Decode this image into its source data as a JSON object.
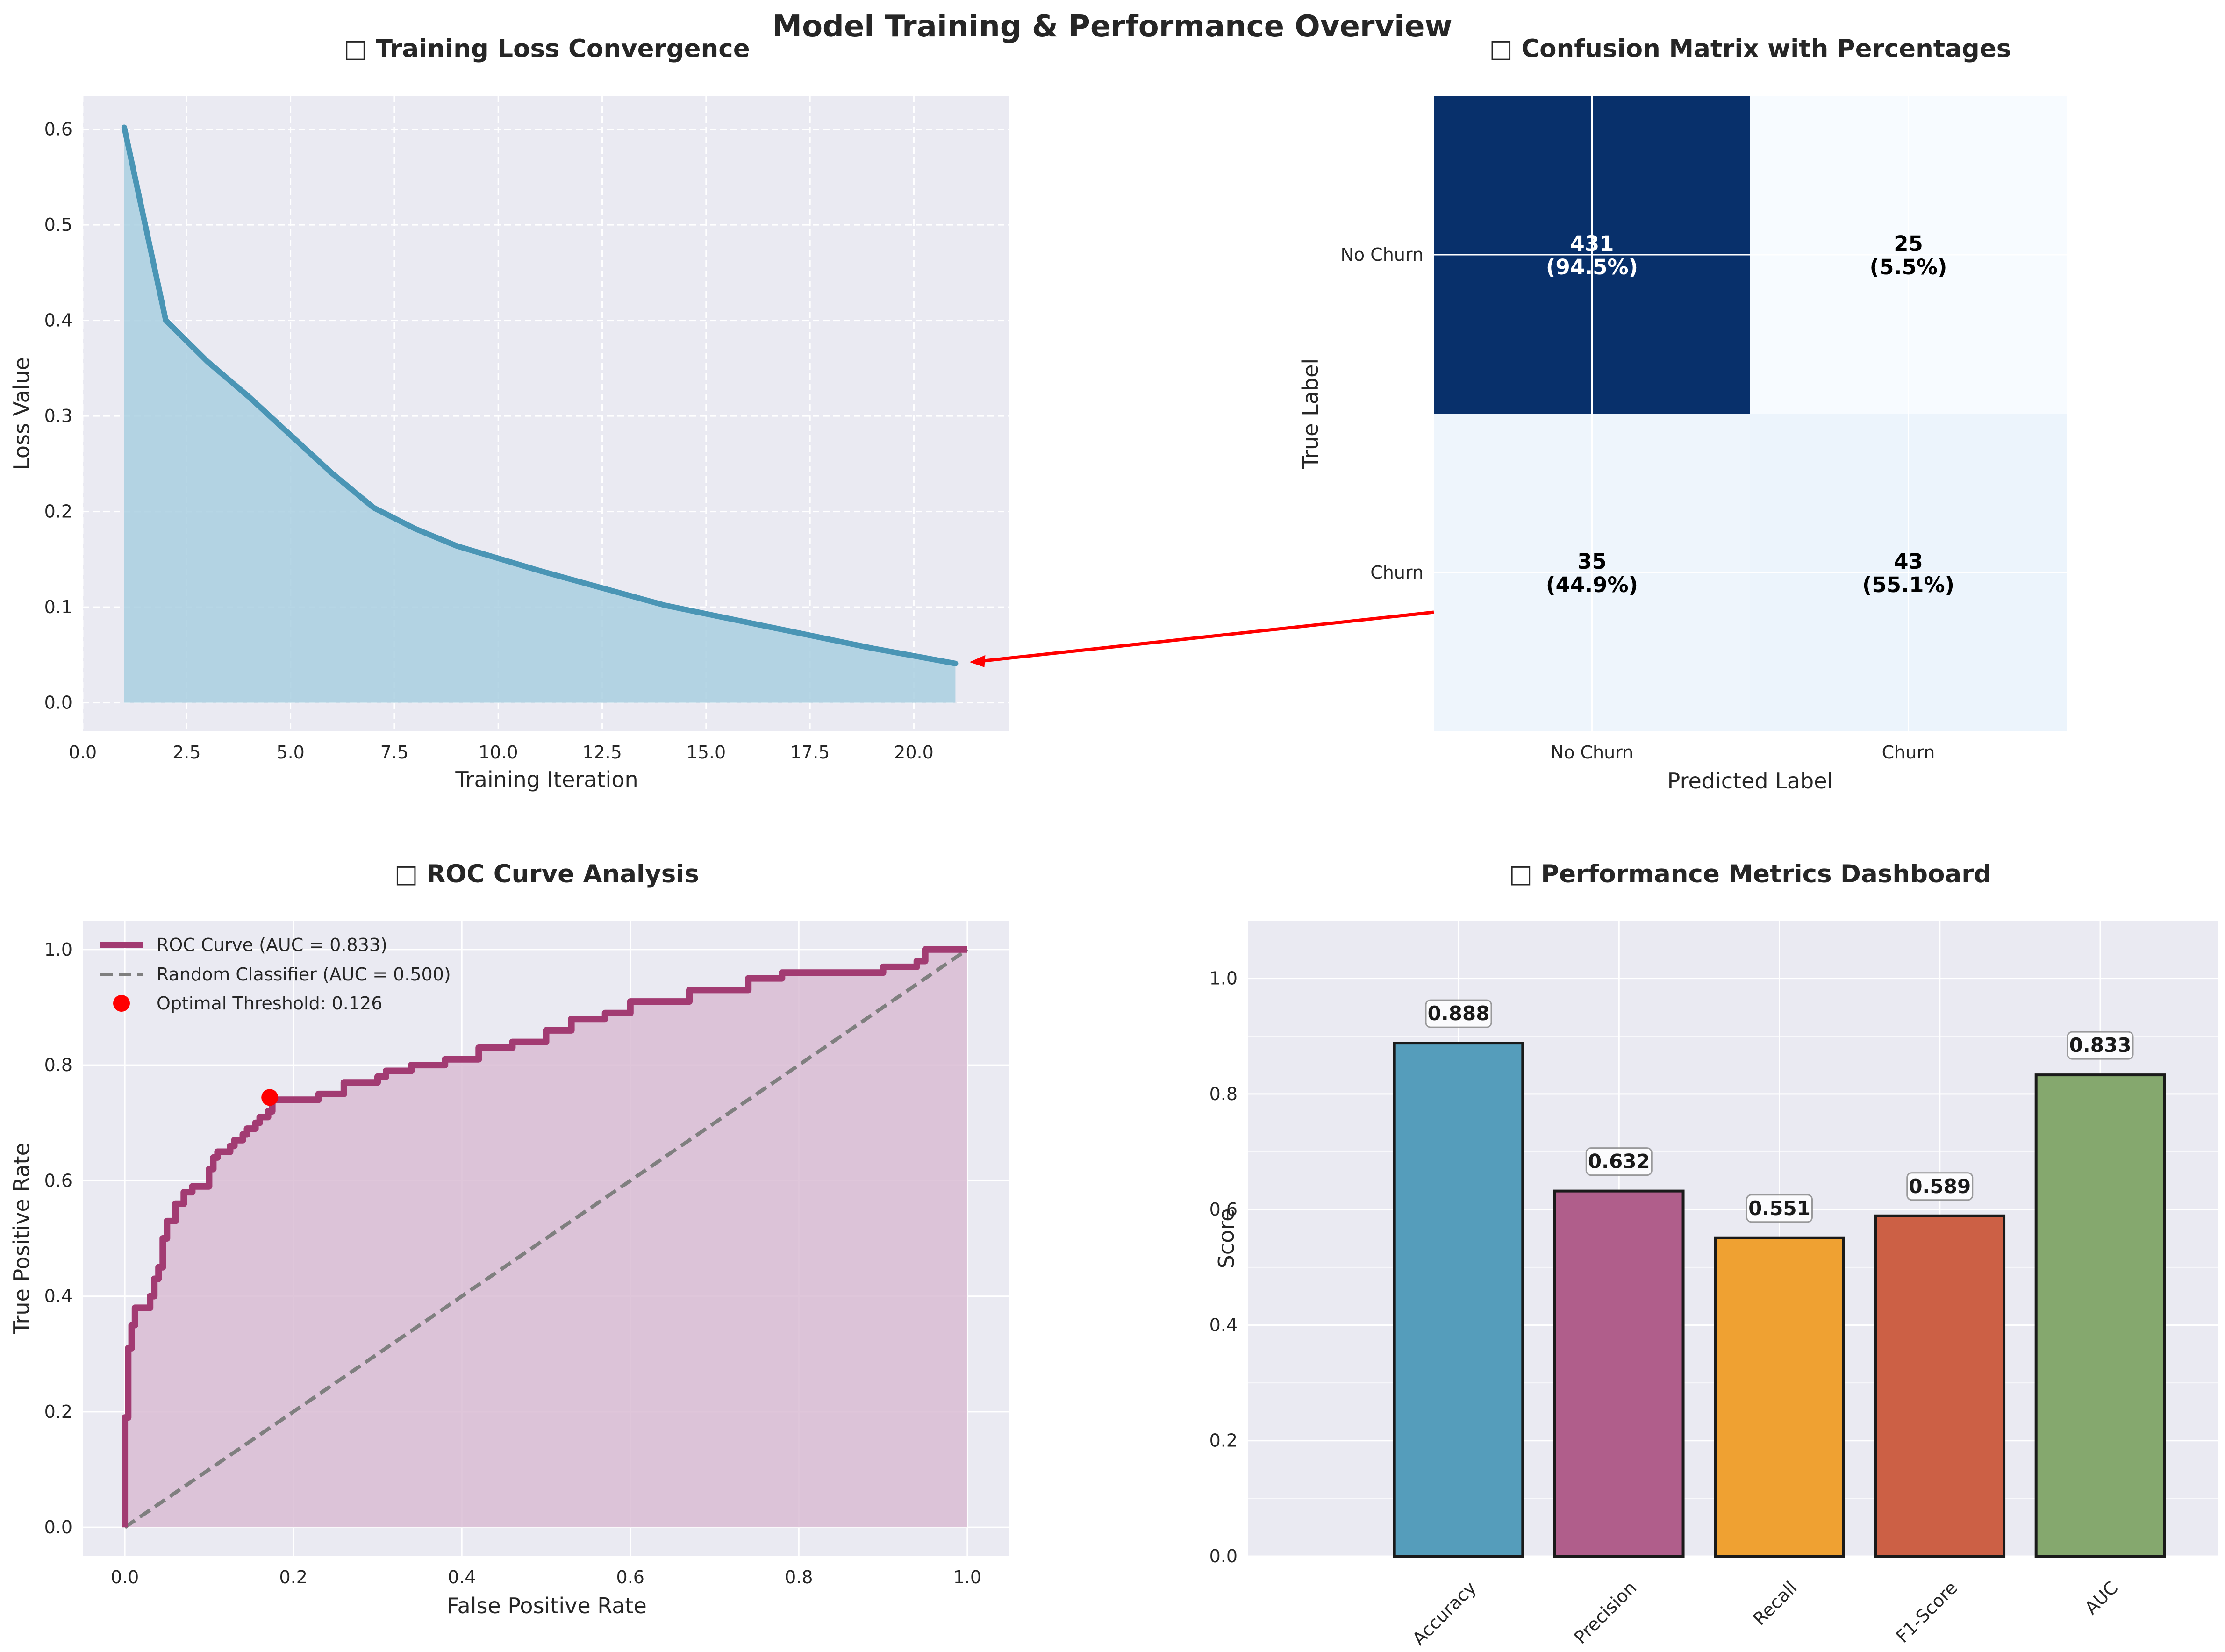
{
  "figure": {
    "title": "Model Training & Performance Overview",
    "icon": "emoji-glyph-missing"
  },
  "chart_data": [
    {
      "type": "area",
      "title": "Training Loss Convergence",
      "xlabel": "Training Iteration",
      "ylabel": "Loss Value",
      "xlim": [
        0,
        22.3
      ],
      "ylim": [
        -0.03,
        0.635
      ],
      "xticks": [
        "0.0",
        "2.5",
        "5.0",
        "7.5",
        "10.0",
        "12.5",
        "15.0",
        "17.5",
        "20.0"
      ],
      "xtick_values": [
        0,
        2.5,
        5,
        7.5,
        10,
        12.5,
        15,
        17.5,
        20
      ],
      "yticks": [
        "0.0",
        "0.1",
        "0.2",
        "0.3",
        "0.4",
        "0.5",
        "0.6"
      ],
      "ytick_values": [
        0,
        0.1,
        0.2,
        0.3,
        0.4,
        0.5,
        0.6
      ],
      "x": [
        1,
        2,
        3,
        4,
        5,
        6,
        7,
        8,
        9,
        10,
        11,
        12,
        13,
        14,
        15,
        16,
        17,
        18,
        19,
        20,
        21
      ],
      "values": [
        0.602,
        0.4,
        0.357,
        0.32,
        0.28,
        0.24,
        0.204,
        0.182,
        0.164,
        0.151,
        0.138,
        0.126,
        0.114,
        0.102,
        0.093,
        0.084,
        0.075,
        0.066,
        0.057,
        0.049,
        0.041
      ],
      "line_color": "#4a95b5",
      "fill_color": "#a9cfe0",
      "grid": true,
      "background": "#eaeaf2"
    },
    {
      "type": "heatmap",
      "title": "Confusion Matrix with Percentages",
      "xlabel": "Predicted Label",
      "ylabel": "True Label",
      "row_labels": [
        "No Churn",
        "Churn"
      ],
      "col_labels": [
        "No Churn",
        "Churn"
      ],
      "values": [
        [
          431,
          25
        ],
        [
          35,
          43
        ]
      ],
      "percent_labels": [
        [
          "(94.5%)",
          "(5.5%)"
        ],
        [
          "(44.9%)",
          "(55.1%)"
        ]
      ],
      "cell_colors": [
        [
          "#08306b",
          "#f7fbff"
        ],
        [
          "#eef5fc",
          "#ecf4fc"
        ]
      ],
      "text_colors": [
        [
          "#ffffff",
          "#000000"
        ],
        [
          "#000000",
          "#000000"
        ]
      ],
      "annotation": "red arrow from confusion matrix to final training loss point",
      "arrow_color": "#ff0000"
    },
    {
      "type": "line",
      "title": "ROC Curve Analysis",
      "xlabel": "False Positive Rate",
      "ylabel": "True Positive Rate",
      "xlim": [
        -0.05,
        1.05
      ],
      "ylim": [
        -0.05,
        1.05
      ],
      "xticks": [
        "0.0",
        "0.2",
        "0.4",
        "0.6",
        "0.8",
        "1.0"
      ],
      "xtick_values": [
        0,
        0.2,
        0.4,
        0.6,
        0.8,
        1.0
      ],
      "yticks": [
        "0.0",
        "0.2",
        "0.4",
        "0.6",
        "0.8",
        "1.0"
      ],
      "ytick_values": [
        0,
        0.2,
        0.4,
        0.6,
        0.8,
        1.0
      ],
      "legend_position": "top-left",
      "series": [
        {
          "name": "ROC Curve (AUC = 0.833)",
          "color": "#a23b72",
          "style": "solid",
          "points": [
            [
              0,
              0
            ],
            [
              0,
              0.19
            ],
            [
              0.004,
              0.22
            ],
            [
              0.004,
              0.31
            ],
            [
              0.008,
              0.35
            ],
            [
              0.012,
              0.38
            ],
            [
              0.025,
              0.38
            ],
            [
              0.03,
              0.4
            ],
            [
              0.035,
              0.43
            ],
            [
              0.04,
              0.45
            ],
            [
              0.045,
              0.47
            ],
            [
              0.045,
              0.5
            ],
            [
              0.05,
              0.53
            ],
            [
              0.06,
              0.53
            ],
            [
              0.06,
              0.56
            ],
            [
              0.07,
              0.56
            ],
            [
              0.07,
              0.58
            ],
            [
              0.08,
              0.59
            ],
            [
              0.09,
              0.59
            ],
            [
              0.1,
              0.59
            ],
            [
              0.1,
              0.62
            ],
            [
              0.105,
              0.64
            ],
            [
              0.11,
              0.65
            ],
            [
              0.12,
              0.65
            ],
            [
              0.125,
              0.66
            ],
            [
              0.13,
              0.67
            ],
            [
              0.14,
              0.68
            ],
            [
              0.145,
              0.69
            ],
            [
              0.15,
              0.69
            ],
            [
              0.155,
              0.7
            ],
            [
              0.16,
              0.7
            ],
            [
              0.16,
              0.71
            ],
            [
              0.17,
              0.71
            ],
            [
              0.17,
              0.72
            ],
            [
              0.175,
              0.73
            ],
            [
              0.175,
              0.74
            ],
            [
              0.2,
              0.74
            ],
            [
              0.23,
              0.74
            ],
            [
              0.23,
              0.75
            ],
            [
              0.25,
              0.75
            ],
            [
              0.26,
              0.77
            ],
            [
              0.3,
              0.77
            ],
            [
              0.3,
              0.78
            ],
            [
              0.31,
              0.78
            ],
            [
              0.31,
              0.79
            ],
            [
              0.34,
              0.79
            ],
            [
              0.34,
              0.8
            ],
            [
              0.37,
              0.8
            ],
            [
              0.38,
              0.81
            ],
            [
              0.4,
              0.81
            ],
            [
              0.42,
              0.83
            ],
            [
              0.45,
              0.83
            ],
            [
              0.46,
              0.84
            ],
            [
              0.5,
              0.84
            ],
            [
              0.5,
              0.86
            ],
            [
              0.52,
              0.86
            ],
            [
              0.53,
              0.88
            ],
            [
              0.56,
              0.88
            ],
            [
              0.57,
              0.89
            ],
            [
              0.6,
              0.89
            ],
            [
              0.6,
              0.91
            ],
            [
              0.66,
              0.91
            ],
            [
              0.67,
              0.93
            ],
            [
              0.73,
              0.93
            ],
            [
              0.74,
              0.95
            ],
            [
              0.77,
              0.95
            ],
            [
              0.78,
              0.96
            ],
            [
              0.82,
              0.96
            ],
            [
              0.86,
              0.96
            ],
            [
              0.9,
              0.96
            ],
            [
              0.9,
              0.97
            ],
            [
              0.93,
              0.97
            ],
            [
              0.94,
              0.98
            ],
            [
              0.95,
              1.0
            ],
            [
              1.0,
              1.0
            ]
          ]
        },
        {
          "name": "Random Classifier (AUC = 0.500)",
          "color": "#7f7f7f",
          "style": "dashed",
          "points": [
            [
              0,
              0
            ],
            [
              1,
              1
            ]
          ]
        }
      ],
      "marker": {
        "name": "Optimal Threshold: 0.126",
        "x": 0.172,
        "y": 0.744,
        "color": "#ff0000"
      },
      "fill_color": "#d9bcd4"
    },
    {
      "type": "bar",
      "title": "Performance Metrics Dashboard",
      "xlabel": "",
      "ylabel": "Score",
      "ylim": [
        0,
        1.1
      ],
      "yticks": [
        "0.0",
        "0.2",
        "0.4",
        "0.6",
        "0.8",
        "1.0"
      ],
      "ytick_values": [
        0,
        0.2,
        0.4,
        0.6,
        0.8,
        1.0
      ],
      "categories": [
        "Accuracy",
        "Precision",
        "Recall",
        "F1-Score",
        "AUC"
      ],
      "values": [
        0.888,
        0.632,
        0.551,
        0.589,
        0.833
      ],
      "value_labels": [
        "0.888",
        "0.632",
        "0.551",
        "0.589",
        "0.833"
      ],
      "colors": [
        "#559dbb",
        "#b05e8b",
        "#efa132",
        "#cc6045",
        "#85a86e"
      ]
    }
  ]
}
